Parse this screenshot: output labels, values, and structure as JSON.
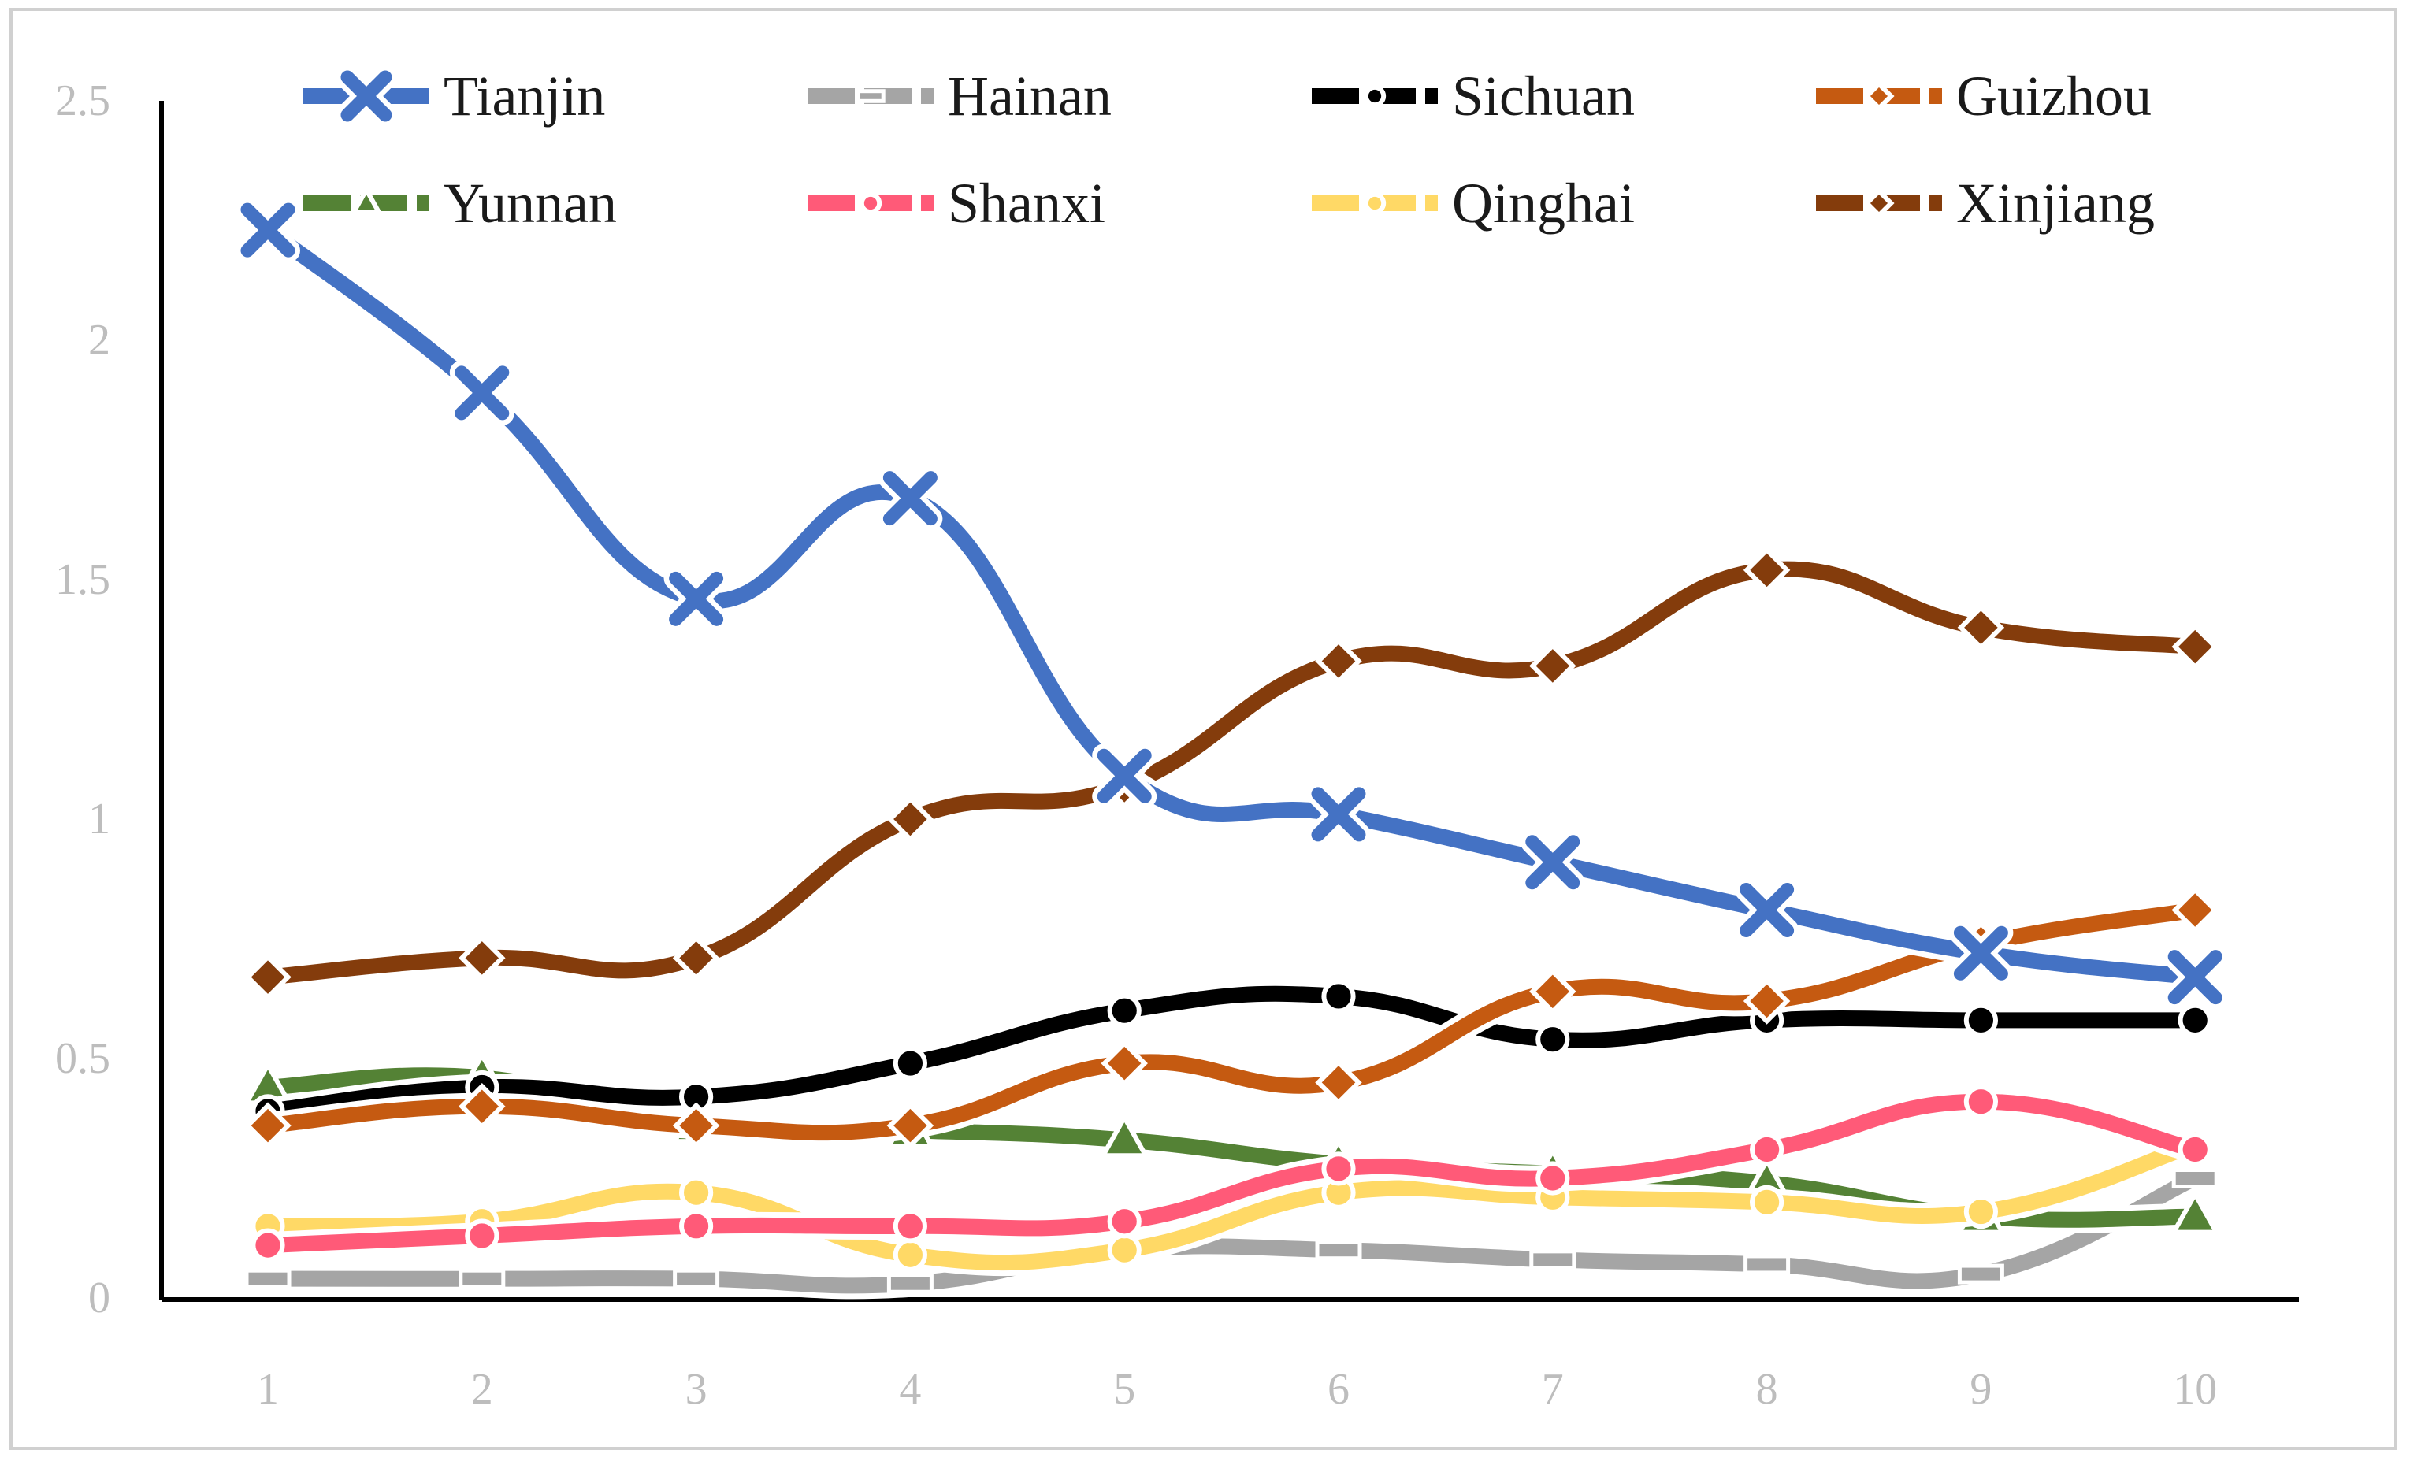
{
  "chart_data": {
    "type": "line",
    "title": "",
    "xlabel": "",
    "ylabel": "",
    "categories": [
      "1",
      "2",
      "3",
      "4",
      "5",
      "6",
      "7",
      "8",
      "9",
      "10"
    ],
    "ylim": [
      0,
      2.5
    ],
    "yticks": [
      "0",
      "0.5",
      "1",
      "1.5",
      "2",
      "2.5"
    ],
    "grid": false,
    "legend_position": "top",
    "series": [
      {
        "name": "Tianjin",
        "color": "#4472C4",
        "marker": "x",
        "values": [
          2.23,
          1.89,
          1.46,
          1.67,
          1.09,
          1.01,
          0.91,
          0.81,
          0.72,
          0.67
        ]
      },
      {
        "name": "Hainan",
        "color": "#A5A5A5",
        "marker": "dash",
        "values": [
          0.04,
          0.04,
          0.04,
          0.03,
          0.1,
          0.1,
          0.08,
          0.07,
          0.05,
          0.25
        ]
      },
      {
        "name": "Sichuan",
        "color": "#000000",
        "marker": "circle",
        "values": [
          0.39,
          0.44,
          0.42,
          0.49,
          0.6,
          0.63,
          0.54,
          0.58,
          0.58,
          0.58
        ]
      },
      {
        "name": "Guizhou",
        "color": "#C55A11",
        "marker": "diamond",
        "values": [
          0.36,
          0.4,
          0.36,
          0.36,
          0.49,
          0.45,
          0.64,
          0.62,
          0.74,
          0.81
        ]
      },
      {
        "name": "Yunnan",
        "color": "#548235",
        "marker": "triangle",
        "values": [
          0.44,
          0.46,
          0.36,
          0.35,
          0.33,
          0.28,
          0.26,
          0.24,
          0.17,
          0.17
        ]
      },
      {
        "name": "Shanxi",
        "color": "#FF5A78",
        "marker": "circle",
        "values": [
          0.11,
          0.13,
          0.15,
          0.15,
          0.16,
          0.27,
          0.25,
          0.31,
          0.41,
          0.31
        ]
      },
      {
        "name": "Qinghai",
        "color": "#FFD966",
        "marker": "circle",
        "values": [
          0.15,
          0.16,
          0.22,
          0.09,
          0.1,
          0.22,
          0.21,
          0.2,
          0.18,
          0.32
        ]
      },
      {
        "name": "Xinjiang",
        "color": "#843C0C",
        "marker": "diamond",
        "values": [
          0.67,
          0.71,
          0.71,
          1.0,
          1.07,
          1.33,
          1.32,
          1.52,
          1.4,
          1.36
        ]
      }
    ]
  }
}
